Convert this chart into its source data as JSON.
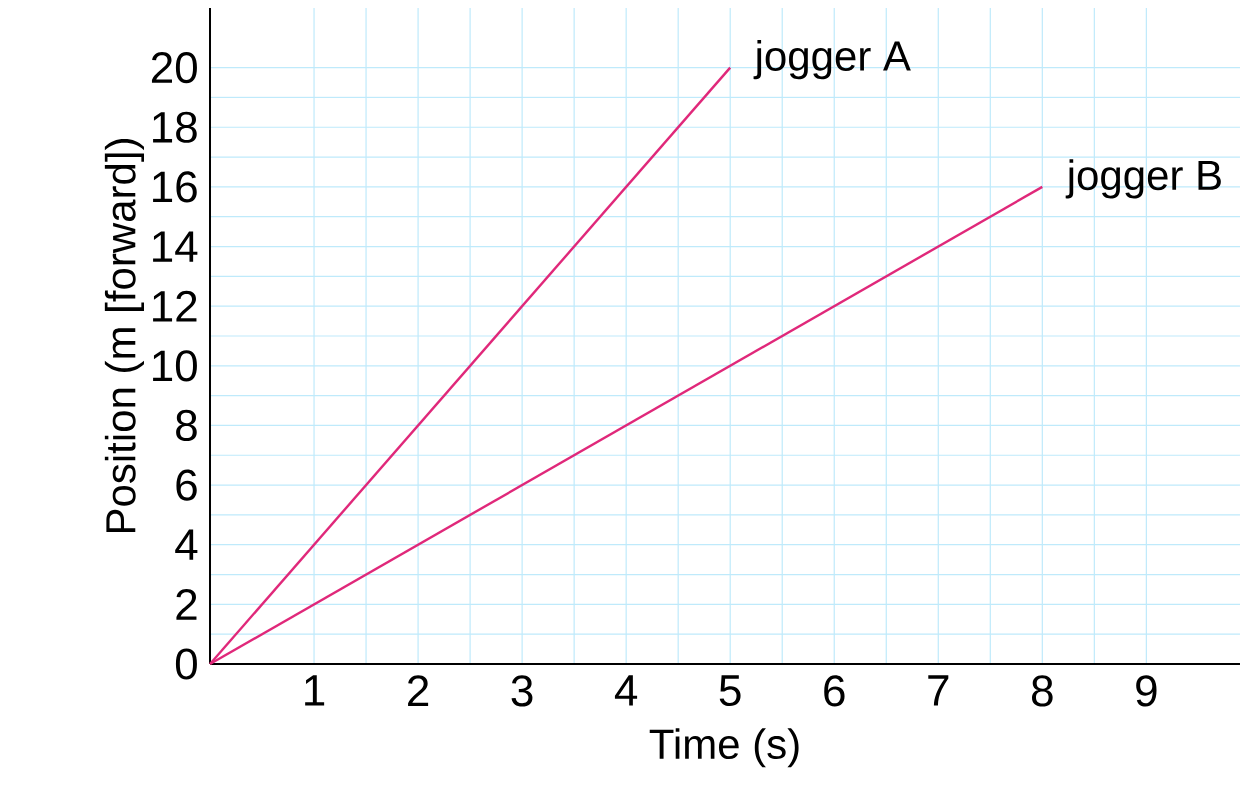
{
  "chart_data": {
    "type": "line",
    "xlabel": "Time (s)",
    "ylabel": "Position (m [forward])",
    "series": [
      {
        "name": "jogger A",
        "color": "#e0287a",
        "x": [
          0,
          5
        ],
        "values": [
          0,
          20
        ]
      },
      {
        "name": "jogger B",
        "color": "#e0287a",
        "x": [
          0,
          8
        ],
        "values": [
          0,
          16
        ]
      }
    ],
    "xlim": [
      0,
      9.9
    ],
    "ylim": [
      0,
      22
    ],
    "xticks": [
      1,
      2,
      3,
      4,
      5,
      6,
      7,
      8,
      9
    ],
    "yticks": [
      0,
      2,
      4,
      6,
      8,
      10,
      12,
      14,
      16,
      18,
      20
    ],
    "grid": true,
    "legend": false,
    "marker": "none",
    "line_style": "solid"
  }
}
